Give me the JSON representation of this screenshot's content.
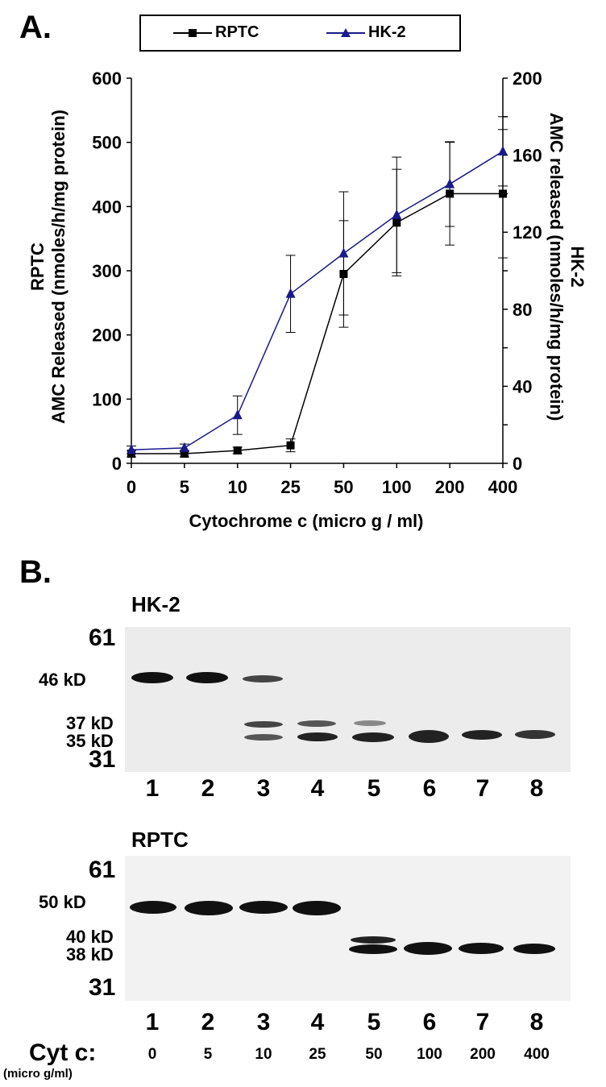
{
  "panel_a": {
    "label": "A."
  },
  "panel_b": {
    "label": "B."
  },
  "legend": {
    "rptc": "RPTC",
    "hk2": "HK-2"
  },
  "colors": {
    "rptc": "#000000",
    "hk2": "#1a1a8a"
  },
  "chart_data": {
    "type": "line",
    "xlabel": "Cytochrome c (micro g / ml)",
    "ylabel_left_line1": "RPTC",
    "ylabel_left_line2": "AMC Released (nmoles/h/mg protein)",
    "ylabel_right_line1": "HK-2",
    "ylabel_right_line2": "AMC released (nmoles/h/mg protein)",
    "categories": [
      "0",
      "5",
      "10",
      "25",
      "50",
      "100",
      "200",
      "400"
    ],
    "ylim_left": [
      0,
      600
    ],
    "yticks_left": [
      0,
      100,
      200,
      300,
      400,
      500,
      600
    ],
    "ylim_right": [
      0,
      200
    ],
    "yticks_right": [
      0,
      40,
      80,
      120,
      160,
      200
    ],
    "series": [
      {
        "name": "RPTC",
        "axis": "left",
        "marker": "square",
        "values": [
          15,
          15,
          20,
          28,
          295,
          375,
          420,
          420
        ],
        "errors": [
          5,
          5,
          5,
          10,
          83,
          83,
          80,
          100
        ]
      },
      {
        "name": "HK-2",
        "axis": "right",
        "marker": "triangle",
        "values": [
          7,
          8,
          25,
          88,
          109,
          129,
          145,
          162
        ],
        "errors": [
          2,
          2,
          10,
          20,
          32,
          30,
          22,
          18
        ]
      }
    ]
  },
  "blot_hk2": {
    "title": "HK-2",
    "mw": {
      "m61": "61",
      "m46": "46 kD",
      "m37": "37 kD",
      "m35": "35 kD",
      "m31": "31"
    },
    "lanes": [
      "1",
      "2",
      "3",
      "4",
      "5",
      "6",
      "7",
      "8"
    ]
  },
  "blot_rptc": {
    "title": "RPTC",
    "mw": {
      "m61": "61",
      "m50": "50 kD",
      "m40": "40 kD",
      "m38": "38 kD",
      "m31": "31"
    },
    "lanes": [
      "1",
      "2",
      "3",
      "4",
      "5",
      "6",
      "7",
      "8"
    ]
  },
  "cyt": {
    "label": "Cyt c:",
    "unit": "(micro g/ml)",
    "values": [
      "0",
      "5",
      "10",
      "25",
      "50",
      "100",
      "200",
      "400"
    ]
  }
}
